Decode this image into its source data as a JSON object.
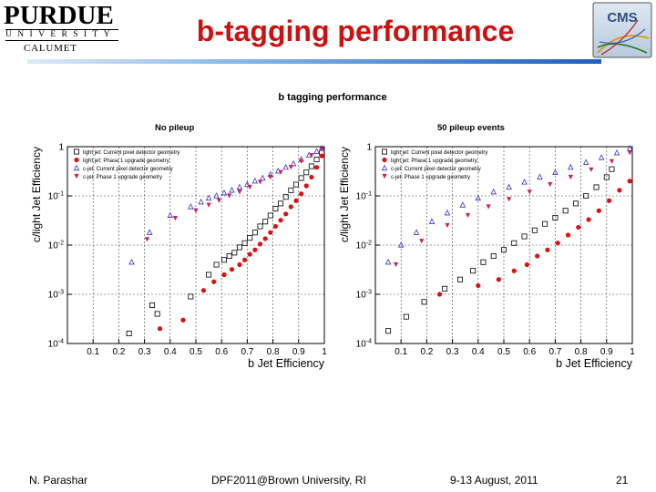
{
  "header": {
    "logo": {
      "name": "PURDUE",
      "subtitle": "UNIVERSITY",
      "campus": "CALUMET"
    },
    "title": "b-tagging performance",
    "cms_logo": {
      "text": "CMS"
    }
  },
  "figure_title": "b tagging performance",
  "footer": {
    "author": "N. Parashar",
    "venue": "DPF2011@Brown University, RI",
    "date": "9-13 August, 2011",
    "page": "21"
  },
  "colors": {
    "title_red": "#cc1111",
    "light_current": "#000000",
    "light_phase1": "#dd1111",
    "c_current": "#3333cc",
    "c_phase1": "#cc2255"
  },
  "chart_data": [
    {
      "type": "scatter",
      "title": "No pileup",
      "xlabel": "b Jet Efficiency",
      "ylabel": "c/light Jet Efficiency",
      "xlim": [
        0,
        1
      ],
      "ylim": [
        0.0001,
        1
      ],
      "log_y": true,
      "grid": true,
      "legend_position": "top-left",
      "x_ticks": [
        "0.1",
        "0.2",
        "0.3",
        "0.4",
        "0.5",
        "0.6",
        "0.7",
        "0.8",
        "0.9",
        "1"
      ],
      "y_ticks": [
        "1",
        "10^{-1}",
        "10^{-2}",
        "10^{-3}",
        "10^{-4}"
      ],
      "series": [
        {
          "name": "light jet: Current pixel detector geometry",
          "marker": "open-square",
          "color": "#000000",
          "x": [
            0.24,
            0.33,
            0.35,
            0.48,
            0.55,
            0.58,
            0.61,
            0.63,
            0.65,
            0.67,
            0.69,
            0.71,
            0.73,
            0.75,
            0.77,
            0.79,
            0.81,
            0.83,
            0.85,
            0.87,
            0.89,
            0.91,
            0.93,
            0.95,
            0.97,
            0.99
          ],
          "y": [
            0.00016,
            0.0006,
            0.0004,
            0.0009,
            0.0025,
            0.004,
            0.005,
            0.006,
            0.007,
            0.009,
            0.011,
            0.014,
            0.018,
            0.024,
            0.03,
            0.04,
            0.055,
            0.07,
            0.095,
            0.13,
            0.17,
            0.23,
            0.3,
            0.4,
            0.55,
            0.75
          ]
        },
        {
          "name": "light jet: Phase 1 upgrade geometry",
          "marker": "filled-circle",
          "color": "#dd1111",
          "x": [
            0.36,
            0.45,
            0.53,
            0.57,
            0.61,
            0.64,
            0.67,
            0.69,
            0.71,
            0.73,
            0.75,
            0.77,
            0.79,
            0.81,
            0.83,
            0.85,
            0.87,
            0.89,
            0.91,
            0.93,
            0.95,
            0.97,
            0.99
          ],
          "y": [
            0.0002,
            0.0003,
            0.0012,
            0.0018,
            0.0025,
            0.0032,
            0.004,
            0.005,
            0.0065,
            0.008,
            0.0105,
            0.0135,
            0.018,
            0.024,
            0.032,
            0.043,
            0.06,
            0.08,
            0.11,
            0.16,
            0.24,
            0.38,
            0.65
          ]
        },
        {
          "name": "c-jet: Current pixel detector geometry",
          "marker": "open-triangle-up",
          "color": "#3333cc",
          "x": [
            0.25,
            0.32,
            0.4,
            0.48,
            0.52,
            0.55,
            0.58,
            0.61,
            0.64,
            0.67,
            0.7,
            0.73,
            0.76,
            0.79,
            0.82,
            0.85,
            0.88,
            0.91,
            0.94,
            0.97,
            0.99
          ],
          "y": [
            0.0045,
            0.018,
            0.04,
            0.06,
            0.075,
            0.09,
            0.1,
            0.115,
            0.13,
            0.15,
            0.17,
            0.2,
            0.23,
            0.27,
            0.32,
            0.38,
            0.45,
            0.55,
            0.67,
            0.8,
            0.92
          ]
        },
        {
          "name": "c-jet: Phase 1 upgrade geometry",
          "marker": "filled-triangle-down",
          "color": "#cc2255",
          "x": [
            0.31,
            0.42,
            0.5,
            0.55,
            0.59,
            0.63,
            0.67,
            0.71,
            0.75,
            0.79,
            0.83,
            0.87,
            0.91,
            0.95,
            0.99
          ],
          "y": [
            0.013,
            0.035,
            0.05,
            0.065,
            0.08,
            0.1,
            0.12,
            0.15,
            0.19,
            0.24,
            0.3,
            0.38,
            0.5,
            0.66,
            0.88
          ]
        }
      ]
    },
    {
      "type": "scatter",
      "title": "50 pileup events",
      "xlabel": "b Jet Efficiency",
      "ylabel": "c/light Jet Efficiency",
      "xlim": [
        0,
        1
      ],
      "ylim": [
        0.0001,
        1
      ],
      "log_y": true,
      "grid": true,
      "legend_position": "top-left",
      "x_ticks": [
        "0.1",
        "0.2",
        "0.3",
        "0.4",
        "0.5",
        "0.6",
        "0.7",
        "0.8",
        "0.9",
        "1"
      ],
      "y_ticks": [
        "1",
        "10^{-1}",
        "10^{-2}",
        "10^{-3}",
        "10^{-4}"
      ],
      "series": [
        {
          "name": "light jet: Current pixel detector geometry",
          "marker": "open-square",
          "color": "#000000",
          "x": [
            0.05,
            0.12,
            0.19,
            0.27,
            0.33,
            0.38,
            0.42,
            0.46,
            0.5,
            0.54,
            0.58,
            0.62,
            0.66,
            0.7,
            0.74,
            0.78,
            0.82,
            0.86,
            0.9,
            0.92
          ],
          "y": [
            0.00018,
            0.00035,
            0.0007,
            0.0013,
            0.002,
            0.003,
            0.0045,
            0.006,
            0.008,
            0.011,
            0.015,
            0.02,
            0.027,
            0.036,
            0.05,
            0.07,
            0.1,
            0.15,
            0.24,
            0.35
          ]
        },
        {
          "name": "light jet: Phase 1 upgrade geometry",
          "marker": "filled-circle",
          "color": "#dd1111",
          "x": [
            0.25,
            0.4,
            0.48,
            0.54,
            0.59,
            0.63,
            0.67,
            0.71,
            0.75,
            0.79,
            0.83,
            0.87,
            0.91,
            0.95,
            0.99
          ],
          "y": [
            0.001,
            0.0015,
            0.002,
            0.003,
            0.004,
            0.006,
            0.008,
            0.011,
            0.016,
            0.023,
            0.033,
            0.05,
            0.08,
            0.13,
            0.2
          ]
        },
        {
          "name": "c-jet: Current pixel detector geometry",
          "marker": "open-triangle-up",
          "color": "#3333cc",
          "x": [
            0.05,
            0.1,
            0.16,
            0.22,
            0.28,
            0.34,
            0.4,
            0.46,
            0.52,
            0.58,
            0.64,
            0.7,
            0.76,
            0.82,
            0.88,
            0.94,
            0.99
          ],
          "y": [
            0.0045,
            0.01,
            0.018,
            0.03,
            0.045,
            0.065,
            0.09,
            0.12,
            0.15,
            0.19,
            0.24,
            0.3,
            0.38,
            0.48,
            0.6,
            0.75,
            0.92
          ]
        },
        {
          "name": "c-jet: Phase 1 upgrade geometry",
          "marker": "filled-triangle-down",
          "color": "#cc2255",
          "x": [
            0.08,
            0.18,
            0.28,
            0.36,
            0.44,
            0.52,
            0.6,
            0.68,
            0.76,
            0.84,
            0.92,
            0.99
          ],
          "y": [
            0.004,
            0.012,
            0.025,
            0.04,
            0.06,
            0.085,
            0.12,
            0.17,
            0.24,
            0.34,
            0.5,
            0.75
          ]
        }
      ]
    }
  ]
}
